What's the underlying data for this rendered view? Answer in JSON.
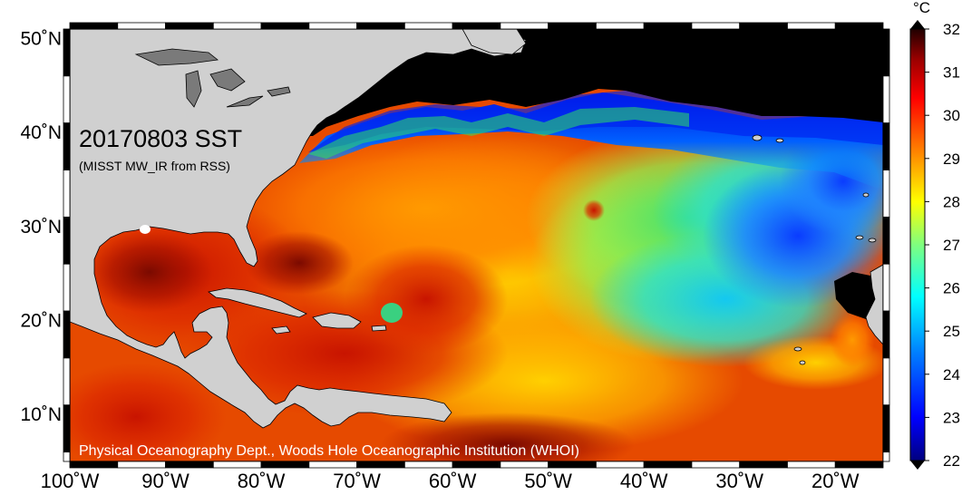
{
  "map": {
    "title": "20170803 SST",
    "subtitle": "(MISST MW_IR from RSS)",
    "credit": "Physical Oceanography Dept., Woods Hole Oceanographic Institution (WHOI)",
    "lon_ticks": [
      "100˚W",
      "90˚W",
      "80˚W",
      "70˚W",
      "60˚W",
      "50˚W",
      "40˚W",
      "30˚W",
      "20˚W"
    ],
    "lat_ticks": [
      "50˚N",
      "40˚N",
      "30˚N",
      "20˚N",
      "10˚N"
    ],
    "lon_range": [
      -100,
      -15
    ],
    "lat_range": [
      5,
      51
    ],
    "land_color": "#d0d0d0",
    "frame_color": "#000000"
  },
  "colorbar": {
    "unit": "°C",
    "min": 22,
    "max": 32,
    "ticks": [
      "32",
      "31",
      "30",
      "29",
      "28",
      "27",
      "26",
      "25",
      "24",
      "23",
      "22"
    ],
    "colors": [
      "#00007f",
      "#0000ff",
      "#007fff",
      "#00ffff",
      "#7fff7f",
      "#ffff00",
      "#ff7f00",
      "#ff0000",
      "#7f0000",
      "#200000"
    ]
  }
}
